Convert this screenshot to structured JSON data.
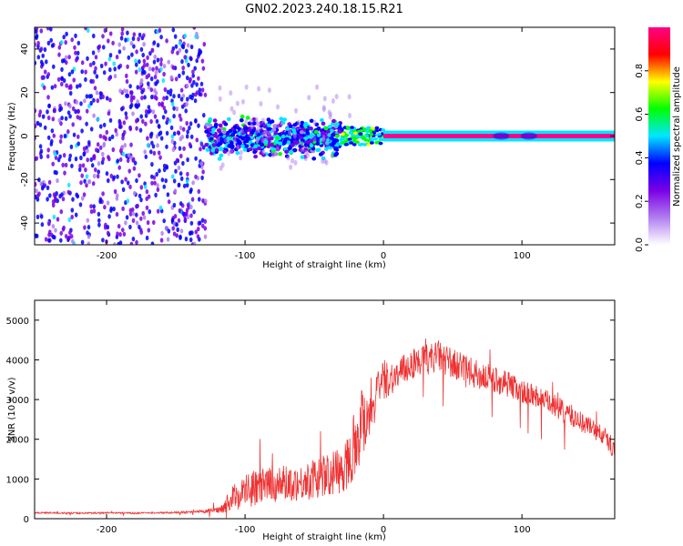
{
  "title": "GN02.2023.240.18.15.R21",
  "chart_data": [
    {
      "type": "heatmap",
      "xlabel": "Height of straight line (km)",
      "ylabel": "Frequency (Hz)",
      "xlim": [
        -252,
        167
      ],
      "ylim": [
        -50,
        50
      ],
      "xticks": [
        -200,
        -100,
        0,
        100
      ],
      "yticks": [
        -40,
        -20,
        0,
        20,
        40
      ],
      "grid": false,
      "colorbar": {
        "label": "Normalized spectral amplitude",
        "range": [
          0,
          1
        ],
        "ticks": [
          "0.0",
          "0.2",
          "0.4",
          "0.6",
          "0.8"
        ],
        "colors": [
          "#ffffff",
          "#b07ef0",
          "#7a00e6",
          "#0000ff",
          "#00e6ff",
          "#00ff00",
          "#ffff00",
          "#ff0000",
          "#ff0088"
        ]
      },
      "regions": [
        {
          "x": [
            -252,
            -128
          ],
          "y": [
            -50,
            50
          ],
          "amplitude": 0.3
        },
        {
          "x": [
            -128,
            -30
          ],
          "y": [
            -12,
            10
          ],
          "amplitude": 0.45
        },
        {
          "x": [
            -30,
            0
          ],
          "y": [
            -4,
            4
          ],
          "amplitude": 0.6
        },
        {
          "x": [
            0,
            167
          ],
          "y": [
            -1,
            1
          ],
          "amplitude": 0.95
        }
      ]
    },
    {
      "type": "line",
      "xlabel": "Height of straight line (km)",
      "ylabel": "SNR (10 * v/v)",
      "xlim": [
        -252,
        167
      ],
      "ylim": [
        0,
        5500
      ],
      "xticks": [
        -200,
        -100,
        0,
        100
      ],
      "yticks": [
        0,
        1000,
        2000,
        3000,
        4000,
        5000
      ],
      "grid": false,
      "series": [
        {
          "color": "#ee3333",
          "x": [
            -252,
            -240,
            -220,
            -200,
            -180,
            -160,
            -140,
            -130,
            -120,
            -115,
            -110,
            -100,
            -90,
            -80,
            -70,
            -60,
            -50,
            -40,
            -30,
            -25,
            -20,
            -15,
            -10,
            -5,
            0,
            10,
            20,
            30,
            40,
            50,
            60,
            70,
            80,
            90,
            100,
            110,
            120,
            130,
            140,
            150,
            160,
            167
          ],
          "y": [
            150,
            150,
            140,
            150,
            140,
            150,
            160,
            180,
            220,
            300,
            500,
            700,
            800,
            850,
            900,
            900,
            1000,
            1100,
            1200,
            1500,
            2000,
            2500,
            2800,
            3100,
            3500,
            3600,
            3900,
            4000,
            4100,
            3900,
            3700,
            3600,
            3500,
            3400,
            3200,
            3100,
            2900,
            2700,
            2500,
            2300,
            2050,
            1750
          ],
          "noise": [
            20,
            20,
            20,
            20,
            20,
            20,
            30,
            40,
            80,
            150,
            300,
            450,
            450,
            450,
            450,
            450,
            500,
            550,
            600,
            700,
            900,
            1000,
            800,
            600,
            500,
            400,
            400,
            400,
            400,
            400,
            400,
            380,
            350,
            330,
            300,
            300,
            300,
            300,
            280,
            260,
            250,
            250
          ]
        }
      ]
    }
  ]
}
